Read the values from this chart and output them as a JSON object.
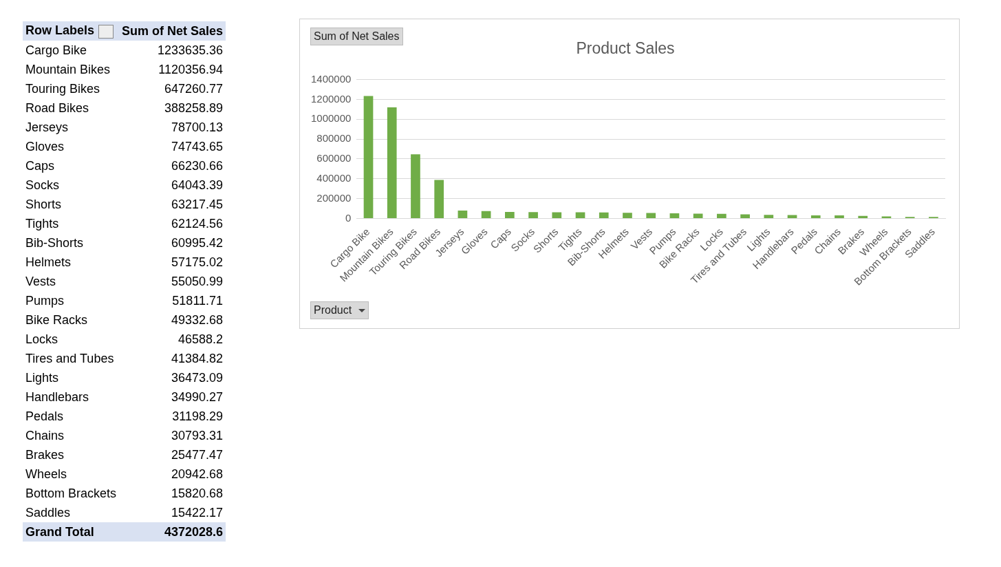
{
  "chart_data": [
    {
      "type": "other",
      "annotations": [
        "Row Labels",
        "Sum of Net Sales",
        "Cargo Bike",
        "1233635.36",
        "Mountain Bikes",
        "1120356.94",
        "Touring Bikes",
        "647260.77",
        "Road Bikes",
        "388258.89",
        "Jerseys",
        "78700.13",
        "Gloves",
        "74743.65",
        "Caps",
        "66230.66",
        "Socks",
        "64043.39",
        "Shorts",
        "63217.45",
        "Tights",
        "62124.56",
        "Bib-Shorts",
        "60995.42",
        "Helmets",
        "57175.02",
        "Vests",
        "55050.99",
        "Pumps",
        "51811.71",
        "Bike Racks",
        "49332.68",
        "Locks",
        "46588.2",
        "Tires and Tubes",
        "41384.82",
        "Lights",
        "36473.09",
        "Handlebars",
        "34990.27",
        "Pedals",
        "31198.29",
        "Chains",
        "30793.31",
        "Brakes",
        "25477.47",
        "Wheels",
        "20942.68",
        "Bottom Brackets",
        "15820.68",
        "Saddles",
        "15422.17",
        "Grand Total",
        "4372028.6"
      ]
    },
    {
      "type": "bar",
      "title": "Product Sales",
      "ylabel": "Sum of Net Sales",
      "xlabel": "Product",
      "categories": [
        "Cargo Bike",
        "Mountain Bikes",
        "Touring Bikes",
        "Road Bikes",
        "Jerseys",
        "Gloves",
        "Caps",
        "Socks",
        "Shorts",
        "Tights",
        "Bib-Shorts",
        "Helmets",
        "Vests",
        "Pumps",
        "Bike Racks",
        "Locks",
        "Tires and Tubes",
        "Lights",
        "Handlebars",
        "Pedals",
        "Chains",
        "Brakes",
        "Wheels",
        "Bottom Brackets",
        "Saddles"
      ],
      "values": [
        1234000,
        1120000,
        647000,
        388000,
        79000,
        75000,
        66000,
        64000,
        63000,
        62000,
        61000,
        57000,
        55000,
        52000,
        49000,
        47000,
        41000,
        36000,
        35000,
        31000,
        31000,
        25000,
        21000,
        16000,
        15000
      ],
      "color": "#70ad47",
      "ylim": [
        0,
        1400000
      ],
      "yticks": [
        0,
        200000,
        400000,
        600000,
        800000,
        1000000,
        1200000,
        1400000
      ],
      "grid": "y"
    }
  ]
}
